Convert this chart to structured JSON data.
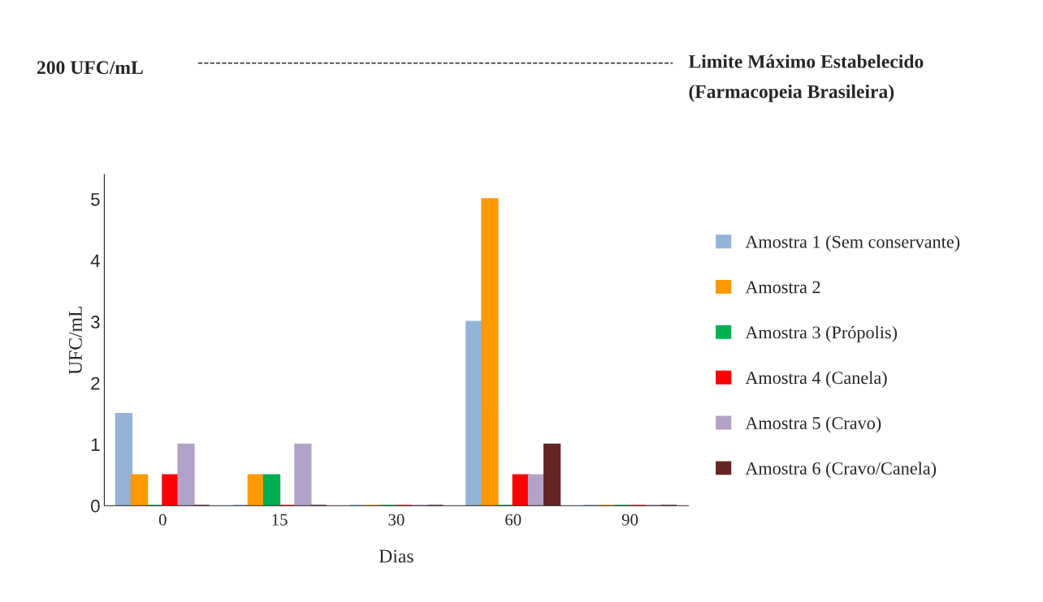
{
  "chart_data": {
    "type": "bar",
    "categories": [
      "0",
      "15",
      "30",
      "60",
      "90"
    ],
    "series": [
      {
        "name": "Amostra 1 (Sem conservante)",
        "color": "#95b3d7",
        "values": [
          1.5,
          0,
          0,
          3,
          0
        ]
      },
      {
        "name": "Amostra 2",
        "color": "#ff9900",
        "values": [
          0.5,
          0.5,
          0,
          5,
          0
        ]
      },
      {
        "name": "Amostra 3 (Própolis)",
        "color": "#00b050",
        "values": [
          0,
          0.5,
          0,
          0,
          0
        ]
      },
      {
        "name": "Amostra 4 (Canela)",
        "color": "#ff0000",
        "values": [
          0.5,
          0,
          0,
          0.5,
          0
        ]
      },
      {
        "name": "Amostra 5 (Cravo)",
        "color": "#b3a2c7",
        "values": [
          1,
          1,
          0,
          0.5,
          0
        ]
      },
      {
        "name": "Amostra 6 (Cravo/Canela)",
        "color": "#632523",
        "values": [
          0,
          0,
          0,
          1,
          0
        ]
      }
    ],
    "xlabel": "Dias",
    "ylabel": "UFC/mL",
    "ylim": [
      0,
      5.4
    ],
    "yticks": [
      0,
      1,
      2,
      3,
      4,
      5
    ],
    "annotations": [
      "200 UFC/mL",
      "Limite Máximo Estabelecido",
      "(Farmacopeia Brasileira)"
    ],
    "grid": false,
    "legend": "right"
  }
}
